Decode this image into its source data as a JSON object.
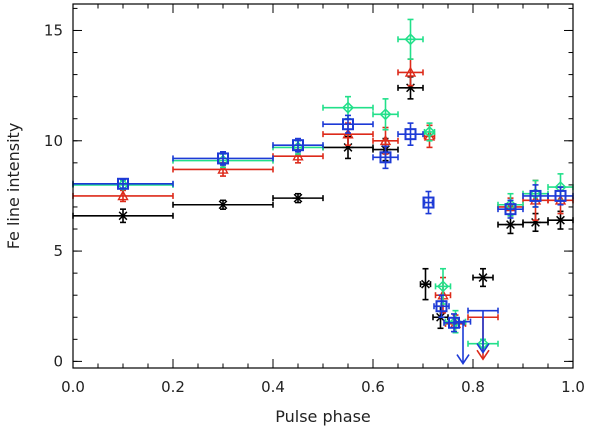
{
  "chart_data": {
    "type": "scatter",
    "title": "",
    "xlabel": "Pulse phase",
    "ylabel": "Fe line intensity",
    "xlim": [
      0.0,
      1.0
    ],
    "ylim": [
      -0.3,
      16.2
    ],
    "grid": false,
    "x_ticks": [
      "0.0",
      "0.2",
      "0.4",
      "0.6",
      "0.8",
      "1.0"
    ],
    "x_tick_values": [
      0.0,
      0.2,
      0.4,
      0.6,
      0.8,
      1.0
    ],
    "y_ticks": [
      "0",
      "5",
      "10",
      "15"
    ],
    "y_tick_values": [
      0,
      5,
      10,
      15
    ],
    "series": [
      {
        "name": "black",
        "color": "#000000",
        "marker": "asterisk",
        "points": [
          {
            "x": 0.1,
            "y": 6.6,
            "xerr": 0.1,
            "yerr": 0.3
          },
          {
            "x": 0.3,
            "y": 7.1,
            "xerr": 0.1,
            "yerr": 0.2
          },
          {
            "x": 0.45,
            "y": 7.4,
            "xerr": 0.05,
            "yerr": 0.2
          },
          {
            "x": 0.55,
            "y": 9.7,
            "xerr": 0.05,
            "yerr": 0.5
          },
          {
            "x": 0.625,
            "y": 9.6,
            "xerr": 0.025,
            "yerr": 0.5
          },
          {
            "x": 0.675,
            "y": 12.4,
            "xerr": 0.025,
            "yerr": 0.5
          },
          {
            "x": 0.705,
            "y": 3.5,
            "xerr": 0.01,
            "yerr": 0.7
          },
          {
            "x": 0.735,
            "y": 2.0,
            "xerr": 0.015,
            "yerr": 0.5
          },
          {
            "x": 0.82,
            "y": 3.8,
            "xerr": 0.02,
            "yerr": 0.4
          },
          {
            "x": 0.875,
            "y": 6.2,
            "xerr": 0.025,
            "yerr": 0.4
          },
          {
            "x": 0.925,
            "y": 6.3,
            "xerr": 0.025,
            "yerr": 0.4
          },
          {
            "x": 0.975,
            "y": 6.4,
            "xerr": 0.025,
            "yerr": 0.4
          }
        ]
      },
      {
        "name": "red",
        "color": "#dd2a1a",
        "marker": "triangle",
        "points": [
          {
            "x": 0.1,
            "y": 7.5,
            "xerr": 0.1,
            "yerr": 0.25
          },
          {
            "x": 0.3,
            "y": 8.7,
            "xerr": 0.1,
            "yerr": 0.3
          },
          {
            "x": 0.45,
            "y": 9.3,
            "xerr": 0.05,
            "yerr": 0.3
          },
          {
            "x": 0.55,
            "y": 10.3,
            "xerr": 0.05,
            "yerr": 0.5
          },
          {
            "x": 0.625,
            "y": 10.0,
            "xerr": 0.025,
            "yerr": 0.6
          },
          {
            "x": 0.675,
            "y": 13.1,
            "xerr": 0.025,
            "yerr": 0.6
          },
          {
            "x": 0.713,
            "y": 10.2,
            "xerr": 0.01,
            "yerr": 0.5
          },
          {
            "x": 0.74,
            "y": 3.0,
            "xerr": 0.015,
            "yerr": 0.8
          },
          {
            "x": 0.765,
            "y": 1.7,
            "xerr": 0.02,
            "yerr": 0.4
          },
          {
            "x": 0.82,
            "y": 2.0,
            "xerr": 0.03,
            "yerr": 0.0,
            "upper_limit": true
          },
          {
            "x": 0.875,
            "y": 7.0,
            "xerr": 0.025,
            "yerr": 0.4
          },
          {
            "x": 0.925,
            "y": 7.3,
            "xerr": 0.025,
            "yerr": 0.9
          },
          {
            "x": 0.975,
            "y": 7.3,
            "xerr": 0.025,
            "yerr": 0.6
          }
        ]
      },
      {
        "name": "green",
        "color": "#22e08a",
        "marker": "diamond",
        "points": [
          {
            "x": 0.1,
            "y": 8.0,
            "xerr": 0.1,
            "yerr": 0.2
          },
          {
            "x": 0.3,
            "y": 9.1,
            "xerr": 0.1,
            "yerr": 0.3
          },
          {
            "x": 0.45,
            "y": 9.7,
            "xerr": 0.05,
            "yerr": 0.3
          },
          {
            "x": 0.55,
            "y": 11.5,
            "xerr": 0.05,
            "yerr": 0.5
          },
          {
            "x": 0.625,
            "y": 11.2,
            "xerr": 0.025,
            "yerr": 0.7
          },
          {
            "x": 0.675,
            "y": 14.6,
            "xerr": 0.025,
            "yerr": 0.9
          },
          {
            "x": 0.713,
            "y": 10.4,
            "xerr": 0.01,
            "yerr": 0.4
          },
          {
            "x": 0.74,
            "y": 3.4,
            "xerr": 0.015,
            "yerr": 0.8
          },
          {
            "x": 0.765,
            "y": 1.8,
            "xerr": 0.02,
            "yerr": 0.5
          },
          {
            "x": 0.82,
            "y": 0.8,
            "xerr": 0.03,
            "yerr": 0.2
          },
          {
            "x": 0.875,
            "y": 7.1,
            "xerr": 0.025,
            "yerr": 0.5
          },
          {
            "x": 0.925,
            "y": 7.6,
            "xerr": 0.025,
            "yerr": 0.6
          },
          {
            "x": 0.975,
            "y": 7.9,
            "xerr": 0.025,
            "yerr": 0.6
          }
        ]
      },
      {
        "name": "blue",
        "color": "#1d3ad6",
        "marker": "square",
        "points": [
          {
            "x": 0.1,
            "y": 8.05,
            "xerr": 0.1,
            "yerr": 0.2
          },
          {
            "x": 0.3,
            "y": 9.2,
            "xerr": 0.1,
            "yerr": 0.3
          },
          {
            "x": 0.45,
            "y": 9.8,
            "xerr": 0.05,
            "yerr": 0.3
          },
          {
            "x": 0.55,
            "y": 10.75,
            "xerr": 0.05,
            "yerr": 0.4
          },
          {
            "x": 0.625,
            "y": 9.25,
            "xerr": 0.025,
            "yerr": 0.5
          },
          {
            "x": 0.675,
            "y": 10.3,
            "xerr": 0.025,
            "yerr": 0.5
          },
          {
            "x": 0.711,
            "y": 7.2,
            "xerr": 0.008,
            "yerr": 0.5
          },
          {
            "x": 0.737,
            "y": 2.5,
            "xerr": 0.015,
            "yerr": 0.5
          },
          {
            "x": 0.762,
            "y": 1.75,
            "xerr": 0.02,
            "yerr": 0.4
          },
          {
            "x": 0.78,
            "y": 1.8,
            "xerr": 0.015,
            "yerr": 0.0,
            "upper_limit": true
          },
          {
            "x": 0.82,
            "y": 2.3,
            "xerr": 0.03,
            "yerr": 0.0,
            "upper_limit": true
          },
          {
            "x": 0.875,
            "y": 6.9,
            "xerr": 0.025,
            "yerr": 0.4
          },
          {
            "x": 0.925,
            "y": 7.5,
            "xerr": 0.025,
            "yerr": 0.5
          },
          {
            "x": 0.975,
            "y": 7.5,
            "xerr": 0.025,
            "yerr": 0.4
          }
        ]
      }
    ]
  }
}
